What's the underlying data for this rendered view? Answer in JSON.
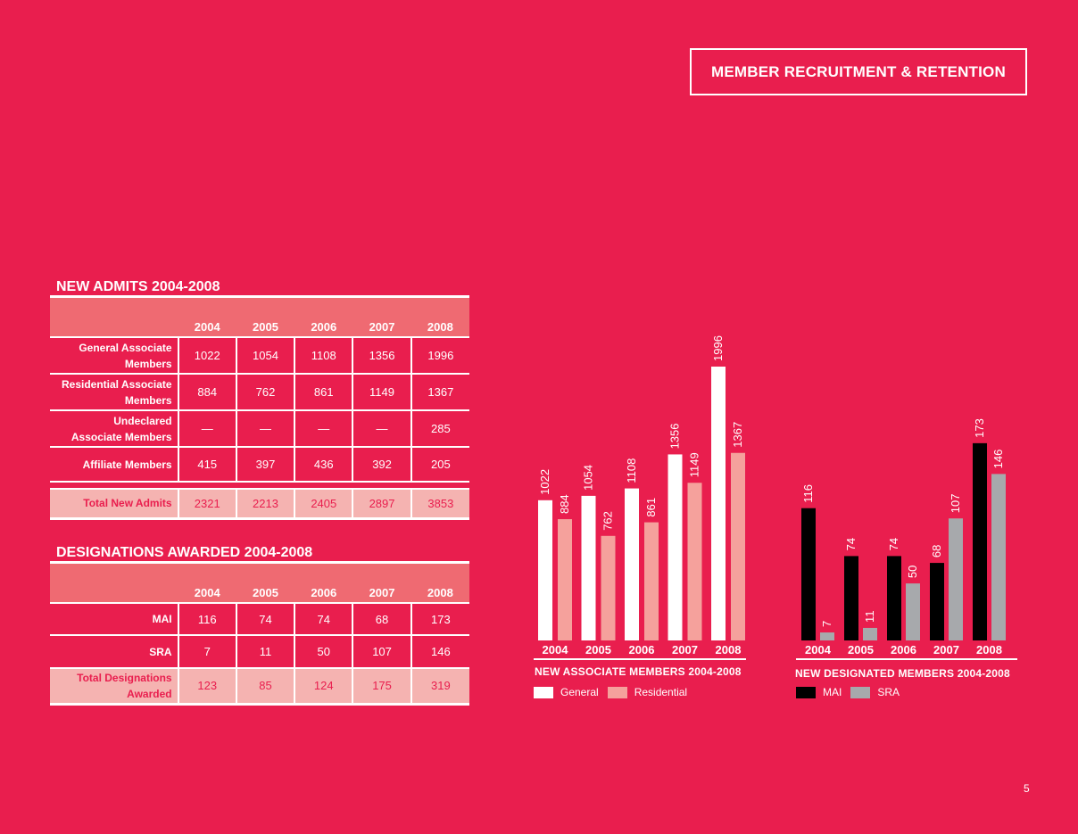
{
  "header": {
    "title": "MEMBER RECRUITMENT & RETENTION"
  },
  "page_number": "5",
  "colors": {
    "background": "#e91e4e",
    "header_row": "#ef6a72",
    "total_row": "#f5b3b1",
    "general": "#ffffff",
    "residential": "#f5a19c",
    "mai": "#000000",
    "sra": "#a7a9ac"
  },
  "new_admits": {
    "title": "NEW ADMITS 2004-2008",
    "years": [
      "2004",
      "2005",
      "2006",
      "2007",
      "2008"
    ],
    "rows": [
      {
        "label_line1": "General Associate",
        "label_line2": "Members",
        "values": [
          "1022",
          "1054",
          "1108",
          "1356",
          "1996"
        ]
      },
      {
        "label_line1": "Residential Associate",
        "label_line2": "Members",
        "values": [
          "884",
          "762",
          "861",
          "1149",
          "1367"
        ]
      },
      {
        "label_line1": "Undeclared",
        "label_line2": "Associate Members",
        "values": [
          "—",
          "—",
          "—",
          "—",
          "285"
        ]
      },
      {
        "label_line1": "Affiliate Members",
        "label_line2": "",
        "values": [
          "415",
          "397",
          "436",
          "392",
          "205"
        ]
      }
    ],
    "total": {
      "label": "Total New Admits",
      "values": [
        "2321",
        "2213",
        "2405",
        "2897",
        "3853"
      ]
    }
  },
  "designations": {
    "title": "DESIGNATIONS AWARDED 2004-2008",
    "years": [
      "2004",
      "2005",
      "2006",
      "2007",
      "2008"
    ],
    "rows": [
      {
        "label": "MAI",
        "values": [
          "116",
          "74",
          "74",
          "68",
          "173"
        ]
      },
      {
        "label": "SRA",
        "values": [
          "7",
          "11",
          "50",
          "107",
          "146"
        ]
      }
    ],
    "total": {
      "label_line1": "Total Designations",
      "label_line2": "Awarded",
      "values": [
        "123",
        "85",
        "124",
        "175",
        "319"
      ]
    }
  },
  "chart_data": [
    {
      "type": "bar",
      "title": "NEW ASSOCIATE MEMBERS 2004-2008",
      "categories": [
        "2004",
        "2005",
        "2006",
        "2007",
        "2008"
      ],
      "series": [
        {
          "name": "General",
          "values": [
            1022,
            1054,
            1108,
            1356,
            1996
          ],
          "color": "#ffffff"
        },
        {
          "name": "Residential",
          "values": [
            884,
            762,
            861,
            1149,
            1367
          ],
          "color": "#f5a19c"
        }
      ],
      "legend": [
        "General",
        "Residential"
      ],
      "legend_position": "bottom-left",
      "ylim": [
        0,
        1996
      ],
      "data_labels": "rotated-above-bars",
      "grid": false
    },
    {
      "type": "bar",
      "title": "NEW DESIGNATED MEMBERS 2004-2008",
      "categories": [
        "2004",
        "2005",
        "2006",
        "2007",
        "2008"
      ],
      "series": [
        {
          "name": "MAI",
          "values": [
            116,
            74,
            74,
            68,
            173
          ],
          "color": "#000000"
        },
        {
          "name": "SRA",
          "values": [
            7,
            11,
            50,
            107,
            146
          ],
          "color": "#a7a9ac"
        }
      ],
      "legend": [
        "MAI",
        "SRA"
      ],
      "legend_position": "bottom-left",
      "ylim": [
        0,
        230
      ],
      "data_labels": "rotated-above-bars",
      "grid": false
    }
  ]
}
